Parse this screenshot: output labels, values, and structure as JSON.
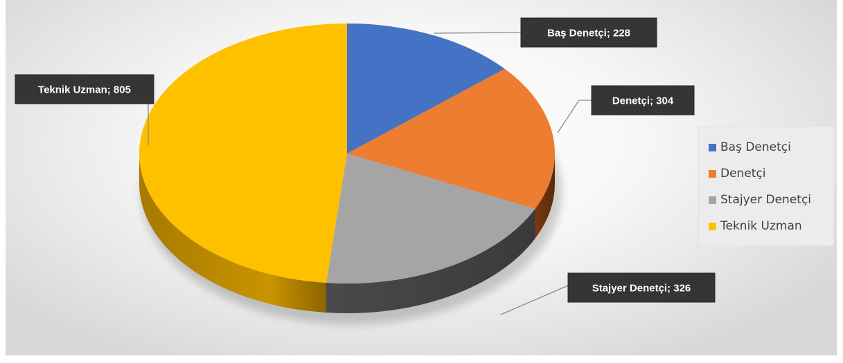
{
  "chart_data": {
    "type": "pie",
    "title": "",
    "categories": [
      "Baş Denetçi",
      "Denetçi",
      "Stajyer Denetçi",
      "Teknik Uzman"
    ],
    "values": [
      228,
      304,
      326,
      805
    ],
    "colors": [
      "#4472C4",
      "#ED7D31",
      "#A5A5A5",
      "#FFC000"
    ],
    "data_labels": [
      "Baş Denetçi; 228",
      "Denetçi; 304",
      "Stajyer Denetçi; 326",
      "Teknik Uzman; 805"
    ],
    "legend_position": "right",
    "style": "3d"
  }
}
